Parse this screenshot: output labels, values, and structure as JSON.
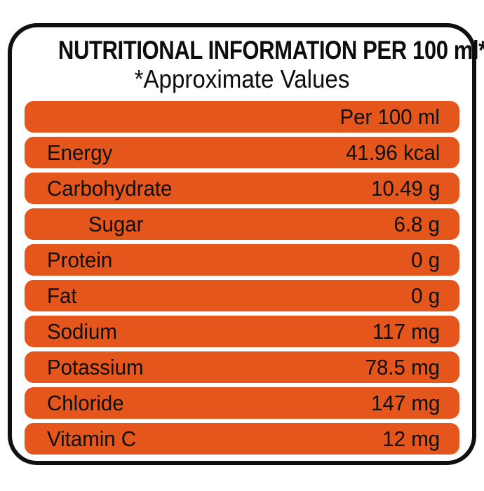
{
  "label": {
    "title": "NUTRITIONAL INFORMATION PER 100 ml*",
    "subtitle": "*Approximate Values",
    "column_header": "Per 100 ml",
    "rows": [
      {
        "name": "Energy",
        "value": "41.96 kcal",
        "indent": false
      },
      {
        "name": "Carbohydrate",
        "value": "10.49 g",
        "indent": false
      },
      {
        "name": "Sugar",
        "value": "6.8 g",
        "indent": true
      },
      {
        "name": "Protein",
        "value": "0 g",
        "indent": false
      },
      {
        "name": "Fat",
        "value": "0 g",
        "indent": false
      },
      {
        "name": "Sodium",
        "value": "117 mg",
        "indent": false
      },
      {
        "name": "Potassium",
        "value": "78.5 mg",
        "indent": false
      },
      {
        "name": "Chloride",
        "value": "147 mg",
        "indent": false
      },
      {
        "name": "Vitamin C",
        "value": "12 mg",
        "indent": false
      }
    ],
    "colors": {
      "bar": "#E4561C",
      "border": "#101010",
      "text": "#0d0d0d",
      "background": "#FFFFFF"
    }
  }
}
